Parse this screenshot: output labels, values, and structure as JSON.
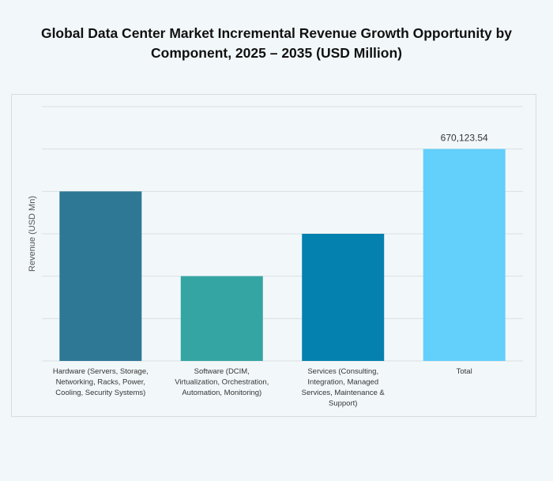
{
  "title": "Global Data Center Market Incremental Revenue Growth Opportunity by Component, 2025 – 2035 (USD Million)",
  "chart_data": {
    "type": "bar",
    "title": "Global Data Center Market Incremental Revenue Growth Opportunity by Component, 2025 – 2035 (USD Million)",
    "xlabel": "",
    "ylabel": "Revenue (USD Mn)",
    "categories": [
      [
        "Hardware (Servers, Storage,",
        "Networking, Racks, Power,",
        "Cooling, Security Systems)"
      ],
      [
        "Software (DCIM,",
        "Virtualization, Orchestration,",
        "Automation, Monitoring)"
      ],
      [
        "Services (Consulting,",
        "Integration, Managed",
        "Services, Maintenance &",
        "Support)"
      ],
      [
        "Total"
      ]
    ],
    "values": [
      536099,
      268049,
      402074,
      670123.54
    ],
    "data_labels": [
      "",
      "",
      "",
      "670,123.54"
    ],
    "colors": [
      "#2e7896",
      "#35a5a3",
      "#0581b0",
      "#63cffb"
    ],
    "ylim": [
      0,
      804148
    ],
    "grid": true,
    "gridlines": 6,
    "legend": "none"
  }
}
